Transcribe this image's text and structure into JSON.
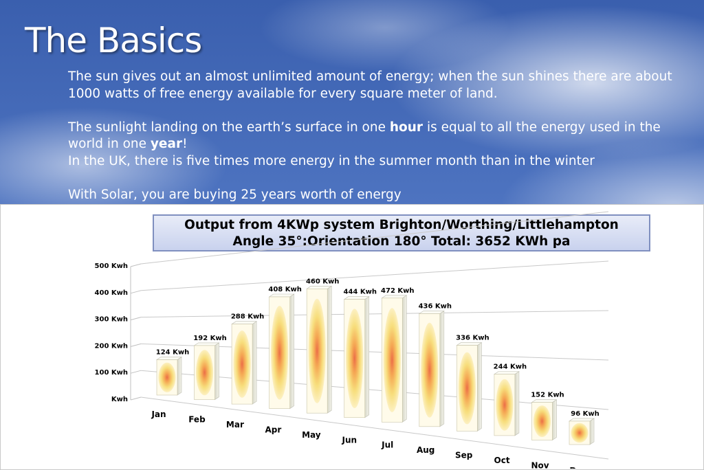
{
  "slide": {
    "title": "The Basics",
    "paragraph1": "The sun gives out an almost unlimited amount of energy;  when the sun shines there are about 1000 watts of free energy available for every square meter of land.",
    "paragraph2_pre": "The sunlight landing on the earth’s surface in one ",
    "paragraph2_bold1": "hour",
    "paragraph2_mid": " is equal to all the energy used in the world in one ",
    "paragraph2_bold2": "year",
    "paragraph2_post": "!",
    "paragraph3": "In the UK, there is five times more energy in the summer month than in the winter",
    "paragraph4": "With Solar, you are buying 25 years worth of energy"
  },
  "chart_data": {
    "type": "bar",
    "title_line1": "Output from 4KWp system Brighton/Worthing/Littlehampton",
    "title_line2": "Angle 35°:Orientation 180° Total: 3652 KWh pa",
    "categories": [
      "Jan",
      "Feb",
      "Mar",
      "Apr",
      "May",
      "Jun",
      "Jul",
      "Aug",
      "Sep",
      "Oct",
      "Nov",
      "Dec"
    ],
    "values": [
      124,
      192,
      288,
      408,
      460,
      444,
      472,
      436,
      336,
      244,
      152,
      96
    ],
    "value_labels": [
      "124 Kwh",
      "192 Kwh",
      "288 Kwh",
      "408 Kwh",
      "460 Kwh",
      "444 Kwh",
      "472 Kwh",
      "436 Kwh",
      "336 Kwh",
      "244 Kwh",
      "152 Kwh",
      "96 Kwh"
    ],
    "y_ticks": [
      0,
      100,
      200,
      300,
      400,
      500
    ],
    "y_tick_labels": [
      "Kwh",
      "100 Kwh",
      "200 Kwh",
      "300 Kwh",
      "400 Kwh",
      "500 Kwh"
    ],
    "ylim": [
      0,
      500
    ],
    "grid": true,
    "style": "3d"
  },
  "colors": {
    "title_bg": "#c9d2ee",
    "bar_fill": "#fff6d8",
    "bar_center": "#f39a3a"
  }
}
